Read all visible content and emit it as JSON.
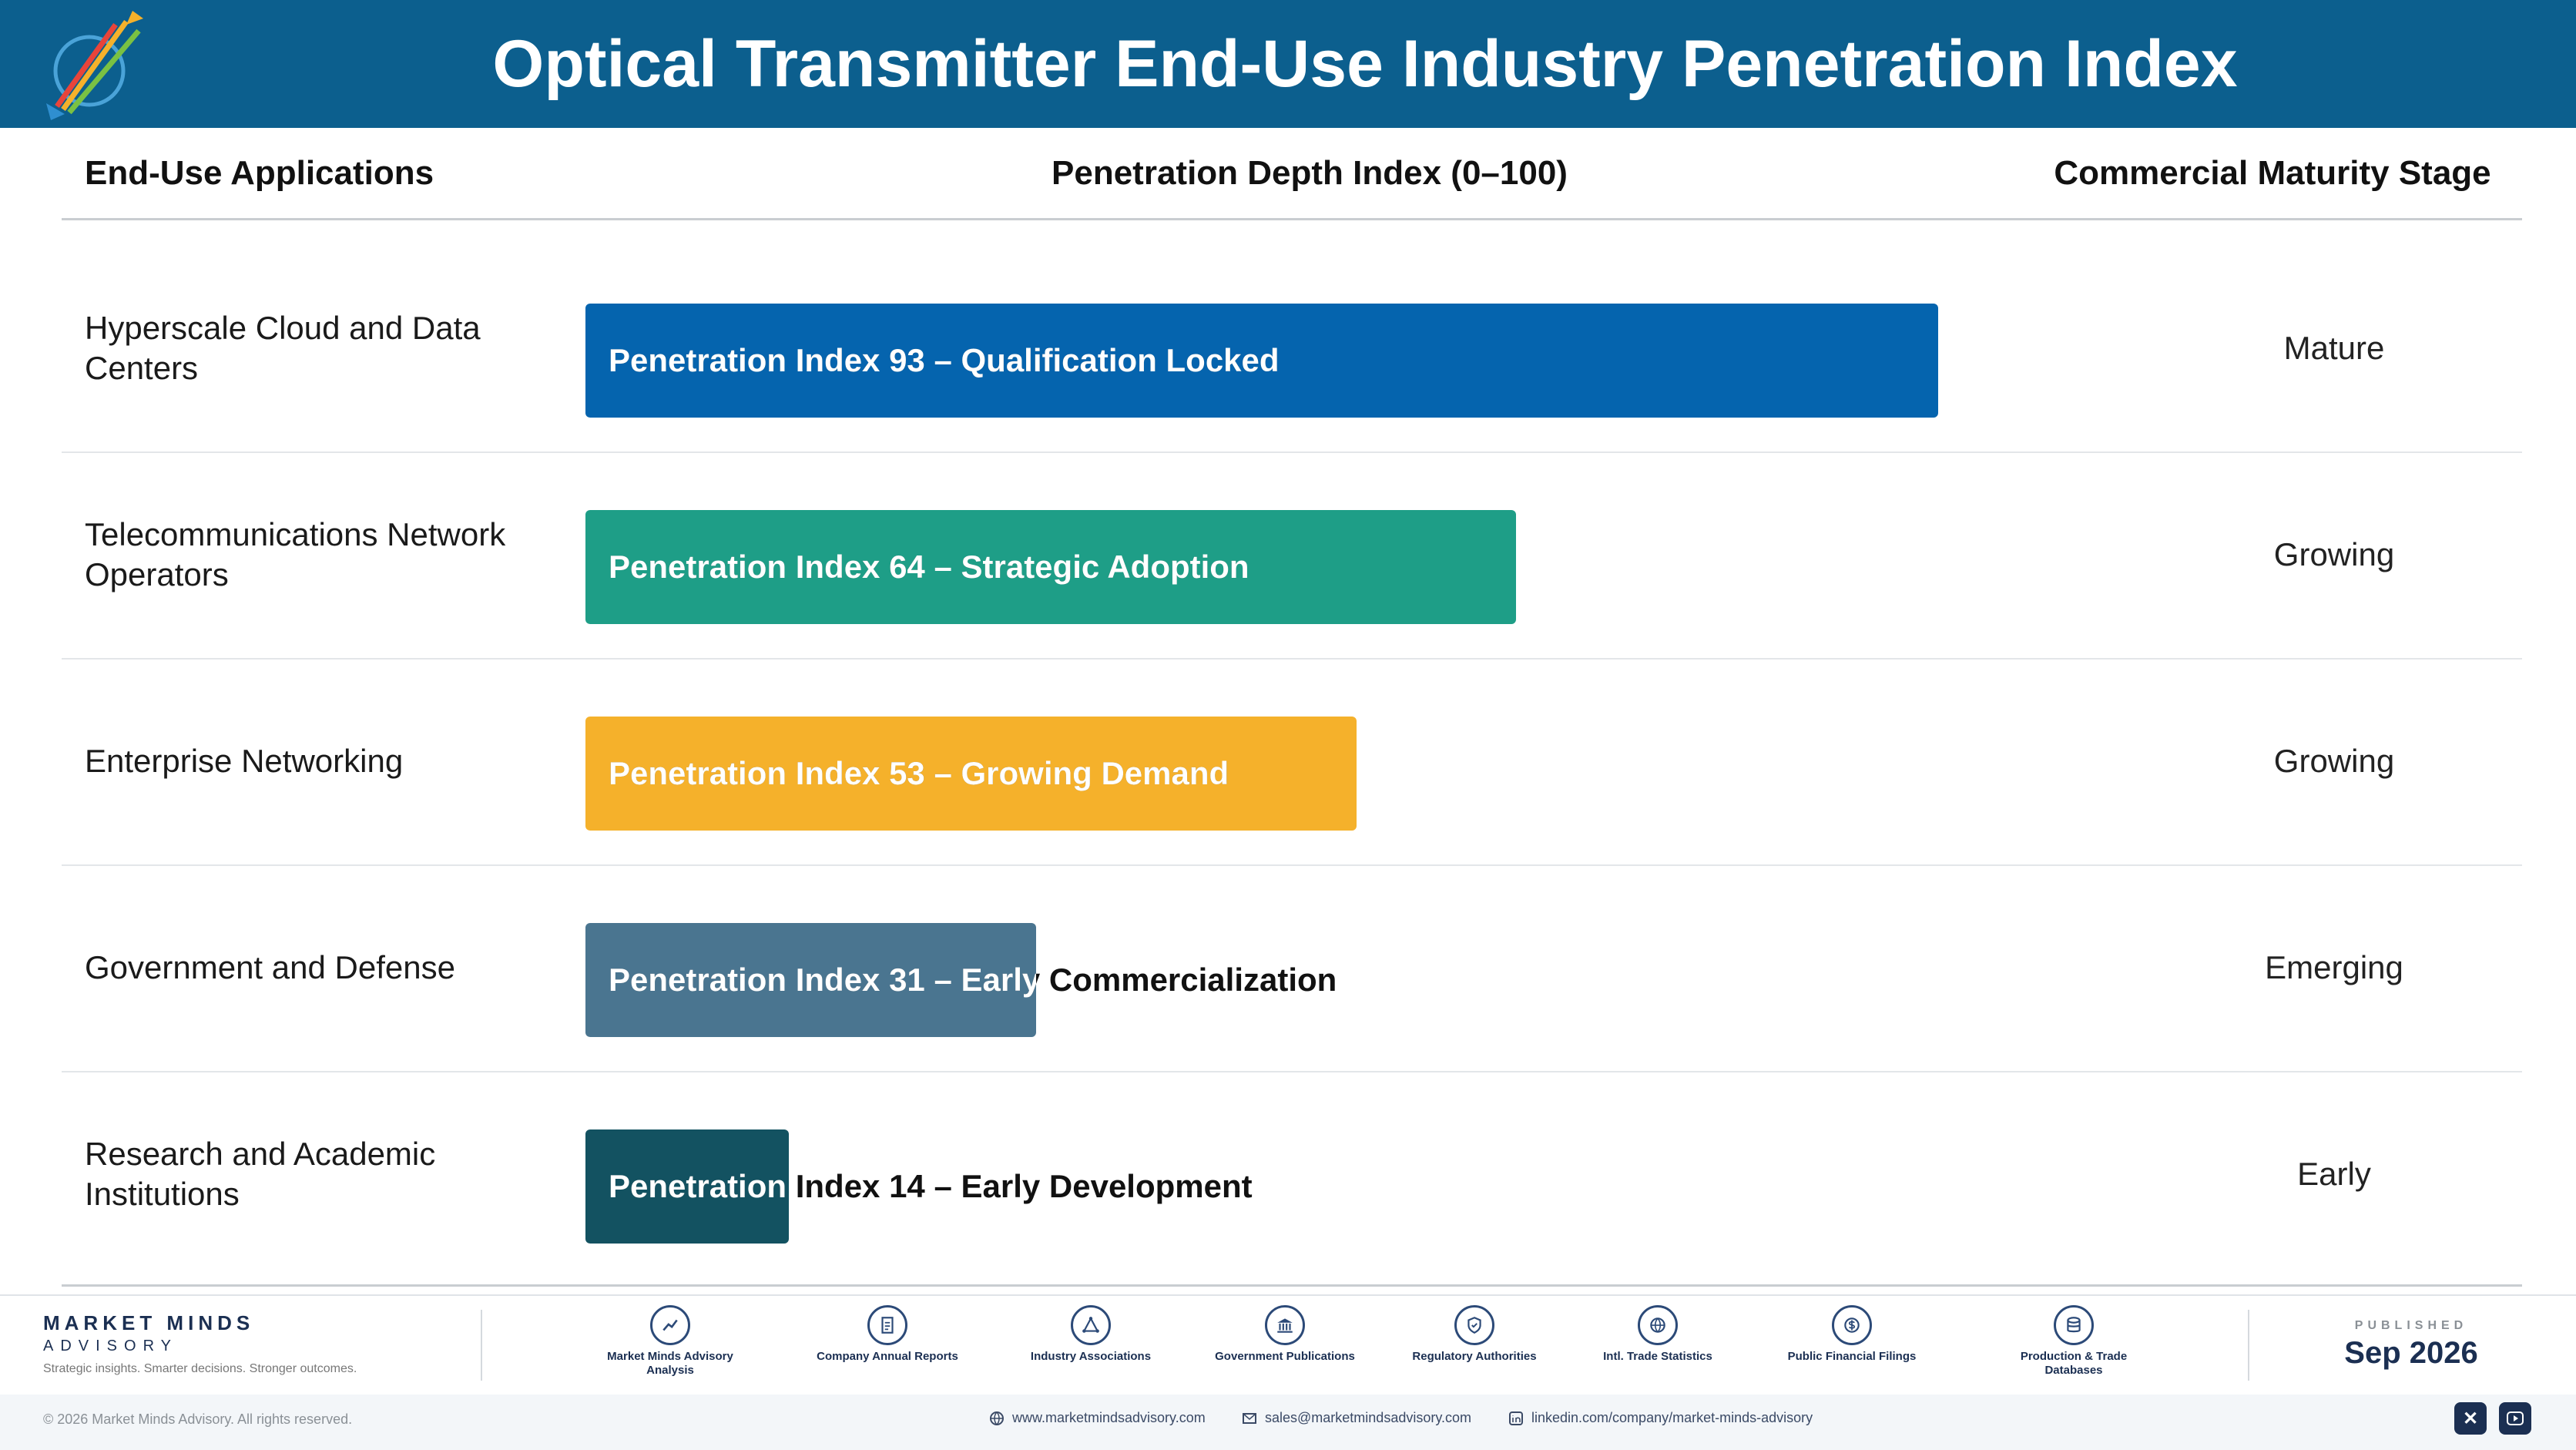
{
  "header": {
    "title": "Optical Transmitter End-Use Industry Penetration Index"
  },
  "columns": {
    "applications": "End-Use Applications",
    "index": "Penetration Depth Index (0–100)",
    "stage": "Commercial Maturity Stage"
  },
  "chart_data": {
    "type": "bar",
    "orientation": "horizontal",
    "title": "Optical Transmitter End-Use Industry Penetration Index",
    "xlabel": "Penetration Depth Index (0–100)",
    "xlim": [
      0,
      100
    ],
    "categories": [
      "Hyperscale Cloud and Data Centers",
      "Telecommunications Network Operators",
      "Enterprise Networking",
      "Government and Defense",
      "Research and Academic Institutions"
    ],
    "values": [
      93,
      64,
      53,
      31,
      14
    ],
    "labels": [
      "Penetration Index 93 – Qualification Locked",
      "Penetration Index 64 – Strategic Adoption",
      "Penetration Index 53 – Growing Demand",
      "Penetration Index 31 – Early Commercialization",
      "Penetration Index 14 – Early Development"
    ],
    "stages": [
      "Mature",
      "Growing",
      "Growing",
      "Emerging",
      "Early"
    ],
    "colors": [
      "#0564ae",
      "#1e9e87",
      "#f5b12b",
      "#4a7590",
      "#135261"
    ],
    "grid": false,
    "legend": "none"
  },
  "footer": {
    "brand_name": "MARKET MINDS",
    "brand_sub": "ADVISORY",
    "tagline": "Strategic insights. Smarter decisions. Stronger outcomes.",
    "sources": [
      {
        "label": "Market Minds Advisory Analysis",
        "icon": "chart-line-icon"
      },
      {
        "label": "Company Annual Reports",
        "icon": "document-icon"
      },
      {
        "label": "Industry Associations",
        "icon": "network-icon"
      },
      {
        "label": "Government Publications",
        "icon": "government-building-icon"
      },
      {
        "label": "Regulatory Authorities",
        "icon": "shield-icon"
      },
      {
        "label": "Intl. Trade Statistics",
        "icon": "globe-icon"
      },
      {
        "label": "Public Financial Filings",
        "icon": "dollar-coin-icon"
      },
      {
        "label": "Production & Trade Databases",
        "icon": "database-icon"
      }
    ],
    "published_label": "PUBLISHED",
    "published_date": "Sep 2026",
    "copyright": "© 2026 Market Minds Advisory. All rights reserved.",
    "website": "www.marketmindsadvisory.com",
    "email": "sales@marketmindsadvisory.com",
    "linkedin": "linkedin.com/company/market-minds-advisory"
  }
}
